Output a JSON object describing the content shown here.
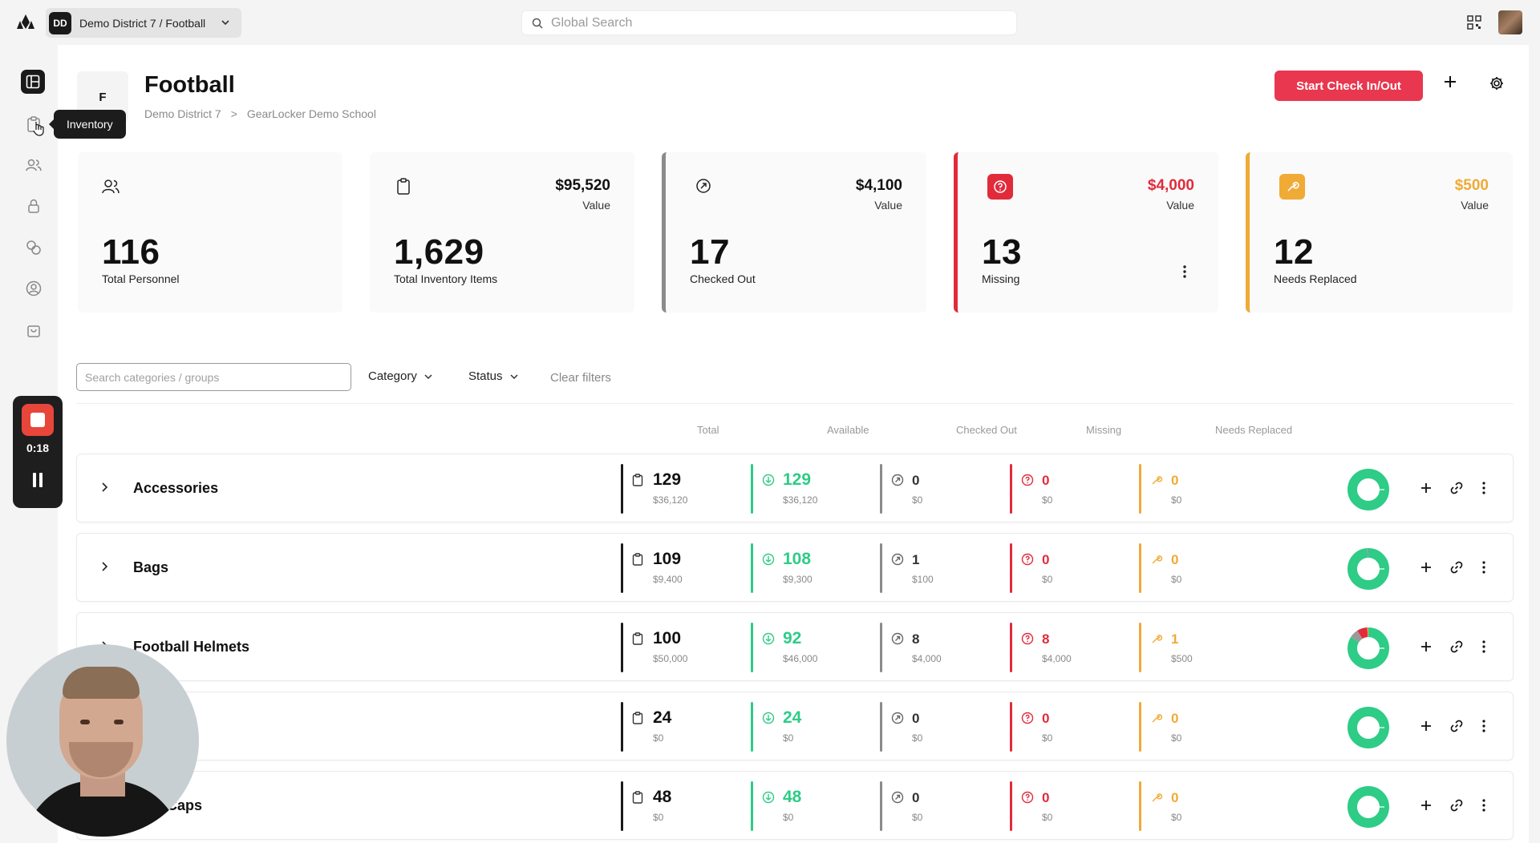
{
  "topbar": {
    "district_badge": "DD",
    "district_label": "Demo District 7 / Football",
    "search_placeholder": "Global Search"
  },
  "sidebar": {
    "items": [
      "dashboard",
      "inventory",
      "personnel",
      "lockers",
      "exchange",
      "users",
      "store"
    ],
    "tooltip": "Inventory"
  },
  "recorder": {
    "time": "0:18"
  },
  "header": {
    "avatar_letter": "F",
    "title": "Football",
    "breadcrumb": [
      "Demo District 7",
      ">",
      "GearLocker Demo School"
    ],
    "checkin_label": "Start Check In/Out"
  },
  "stats": [
    {
      "number": "116",
      "label": "Total Personnel",
      "value": "",
      "value_label": ""
    },
    {
      "number": "1,629",
      "label": "Total Inventory Items",
      "value": "$95,520",
      "value_label": "Value"
    },
    {
      "number": "17",
      "label": "Checked Out",
      "value": "$4,100",
      "value_label": "Value"
    },
    {
      "number": "13",
      "label": "Missing",
      "value": "$4,000",
      "value_label": "Value"
    },
    {
      "number": "12",
      "label": "Needs Replaced",
      "value": "$500",
      "value_label": "Value"
    }
  ],
  "filters": {
    "search_placeholder": "Search categories / groups",
    "category": "Category",
    "status": "Status",
    "clear": "Clear filters"
  },
  "columns": [
    "Total",
    "Available",
    "Checked Out",
    "Missing",
    "Needs Replaced"
  ],
  "rows": [
    {
      "name": "Accessories",
      "total": "129",
      "total_v": "$36,120",
      "avail": "129",
      "avail_v": "$36,120",
      "out": "0",
      "out_v": "$0",
      "miss": "0",
      "miss_v": "$0",
      "repl": "0",
      "repl_v": "$0",
      "avail_frac": 1.0,
      "out_frac": 0,
      "miss_frac": 0,
      "repl_frac": 0
    },
    {
      "name": "Bags",
      "total": "109",
      "total_v": "$9,400",
      "avail": "108",
      "avail_v": "$9,300",
      "out": "1",
      "out_v": "$100",
      "miss": "0",
      "miss_v": "$0",
      "repl": "0",
      "repl_v": "$0",
      "avail_frac": 0.99,
      "out_frac": 0.01,
      "miss_frac": 0,
      "repl_frac": 0
    },
    {
      "name": "Football Helmets",
      "total": "100",
      "total_v": "$50,000",
      "avail": "92",
      "avail_v": "$46,000",
      "out": "8",
      "out_v": "$4,000",
      "miss": "8",
      "miss_v": "$4,000",
      "repl": "1",
      "repl_v": "$500",
      "avail_frac": 0.84,
      "out_frac": 0.07,
      "miss_frac": 0.08,
      "repl_frac": 0.01
    },
    {
      "name": "",
      "total": "24",
      "total_v": "$0",
      "avail": "24",
      "avail_v": "$0",
      "out": "0",
      "out_v": "$0",
      "miss": "0",
      "miss_v": "$0",
      "repl": "0",
      "repl_v": "$0",
      "avail_frac": 1.0,
      "out_frac": 0,
      "miss_frac": 0,
      "repl_frac": 0
    },
    {
      "name": "dian Caps",
      "total": "48",
      "total_v": "$0",
      "avail": "48",
      "avail_v": "$0",
      "out": "0",
      "out_v": "$0",
      "miss": "0",
      "miss_v": "$0",
      "repl": "0",
      "repl_v": "$0",
      "avail_frac": 1.0,
      "out_frac": 0,
      "miss_frac": 0,
      "repl_frac": 0
    }
  ],
  "colors": {
    "accent_red": "#e8374f",
    "available_green": "#2ecc87",
    "missing_red": "#e12b3b",
    "replace_orange": "#f0aa36",
    "checked_gray": "#8b8b8b"
  }
}
